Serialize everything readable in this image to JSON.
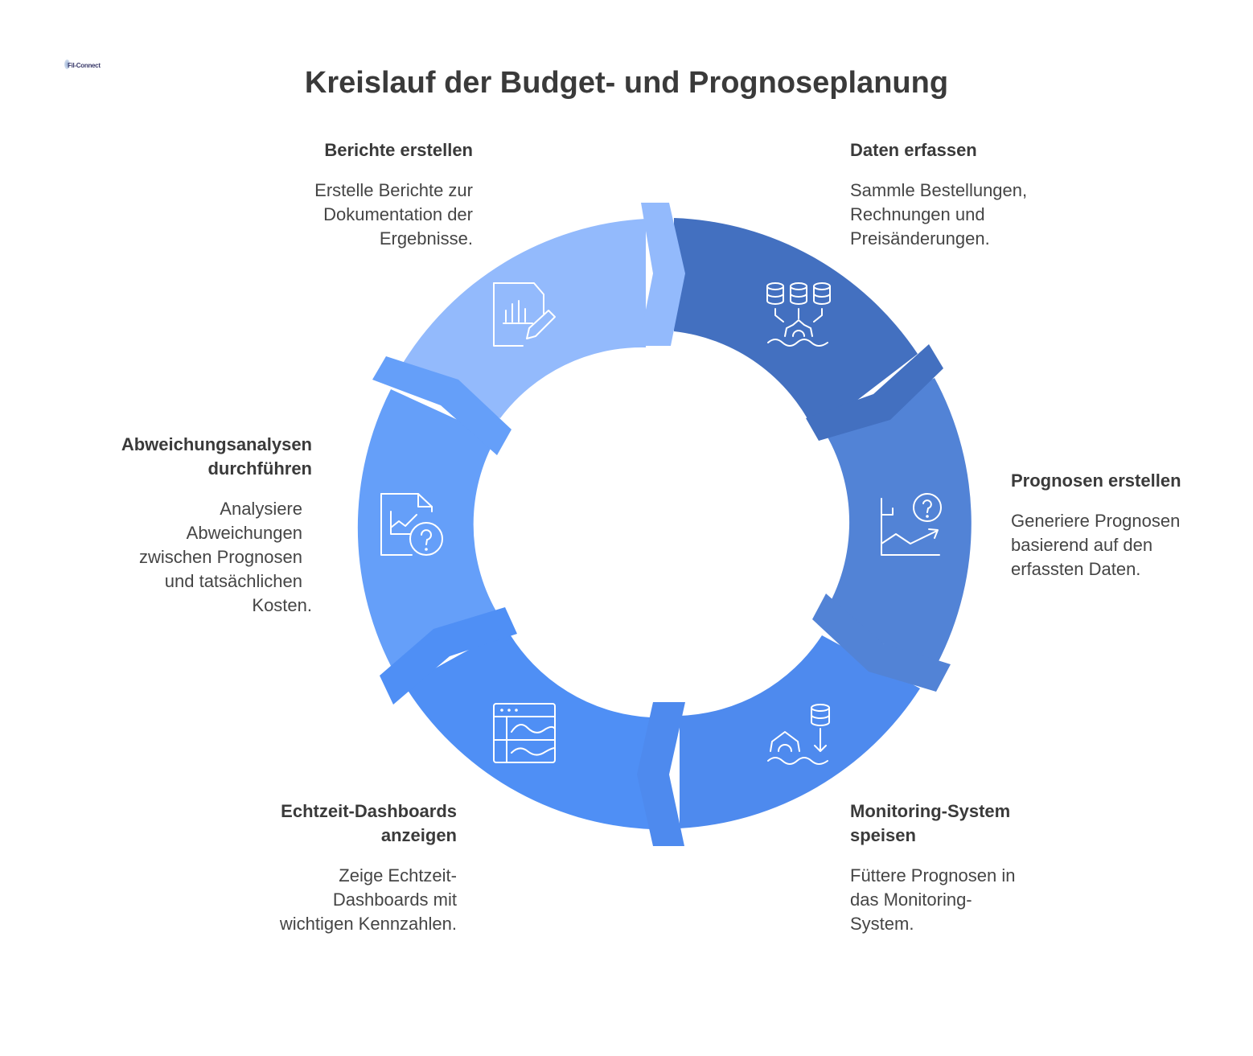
{
  "logo": {
    "text": "Fil-Connect"
  },
  "title": "Kreislauf der Budget- und Prognoseplanung",
  "colors": {
    "berichte": "#93bafc",
    "daten": "#4370c0",
    "prognosen": "#5283d6",
    "monitoring": "#4e8aee",
    "dashboards": "#4f8ff5",
    "abweichung": "#659ff9",
    "icon_stroke": "#ffffff"
  },
  "steps": [
    {
      "id": "daten",
      "title": "Daten erfassen",
      "desc": [
        "Sammle Bestellungen,",
        "Rechnungen und",
        "Preisänderungen."
      ],
      "icon": "database-gear-icon"
    },
    {
      "id": "prognosen",
      "title": "Prognosen erstellen",
      "desc": [
        "Generiere Prognosen",
        "basierend auf den",
        "erfassten Daten."
      ],
      "icon": "chart-question-icon"
    },
    {
      "id": "monitoring",
      "title": [
        "Monitoring-System",
        "speisen"
      ],
      "desc": [
        "Füttere Prognosen in",
        "das Monitoring-",
        "System."
      ],
      "icon": "gear-database-icon"
    },
    {
      "id": "dashboards",
      "title": [
        "Echtzeit-Dashboards",
        "anzeigen"
      ],
      "desc": [
        "Zeige Echtzeit-",
        "Dashboards mit",
        "wichtigen Kennzahlen."
      ],
      "icon": "dashboard-window-icon"
    },
    {
      "id": "abweichung",
      "title": [
        "Abweichungsanalysen",
        "durchführen"
      ],
      "desc": [
        "Analysiere",
        "Abweichungen",
        "zwischen Prognosen",
        "und tatsächlichen",
        "Kosten."
      ],
      "icon": "document-question-icon"
    },
    {
      "id": "berichte",
      "title": "Berichte erstellen",
      "desc": [
        "Erstelle Berichte zur",
        "Dokumentation der",
        "Ergebnisse."
      ],
      "icon": "report-edit-icon"
    }
  ]
}
